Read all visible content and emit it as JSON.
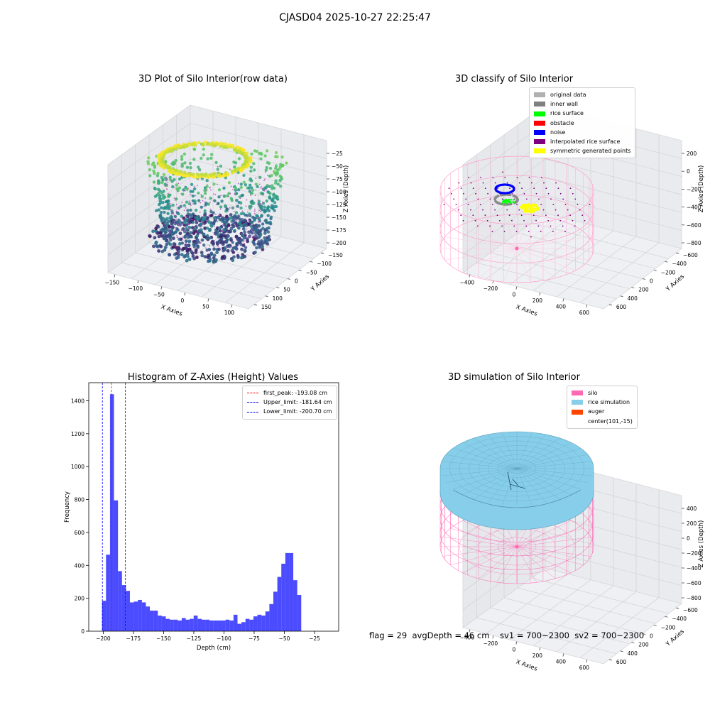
{
  "suptitle": "CJASD04 2025-10-27 22:25:47",
  "footer": "flag = 29  avgDepth = 46 cm    sv1 = 700~2300  sv2 = 700~2300",
  "chart_data": [
    {
      "type": "scatter",
      "title": "3D Plot of Silo Interior(row data)",
      "xlabel": "X Axies",
      "ylabel": "Y Axies",
      "zlabel": "Z Axies (Depth)",
      "x_ticks": [
        "−150",
        "−100",
        "−50",
        "0",
        "50",
        "100"
      ],
      "y_ticks": [
        "150",
        "100",
        "50",
        "0",
        "−50",
        "−100",
        "−150"
      ],
      "z_ticks": [
        "−25",
        "−50",
        "−75",
        "−100",
        "−125",
        "−150",
        "−175",
        "−200"
      ],
      "colormap": "viridis",
      "zlim": [
        -205,
        -10
      ]
    },
    {
      "type": "scatter",
      "title": "3D classify of Silo Interior",
      "xlabel": "X Axies",
      "ylabel": "Y Axies",
      "zlabel": "Z Axies (Depth)",
      "x_ticks": [
        "−400",
        "−200",
        "0",
        "200",
        "400",
        "600"
      ],
      "y_ticks": [
        "600",
        "400",
        "200",
        "0",
        "−200",
        "−400",
        "−600"
      ],
      "z_ticks": [
        "200",
        "0",
        "−200",
        "−400",
        "−600",
        "−800"
      ],
      "legend_position": "upper-right",
      "legend": [
        {
          "label": "original data",
          "color": "#b0b0b0"
        },
        {
          "label": "inner wall",
          "color": "#808080"
        },
        {
          "label": "rice surface",
          "color": "#00ff00"
        },
        {
          "label": "obstacle",
          "color": "#ff0000"
        },
        {
          "label": "noise",
          "color": "#0000ff"
        },
        {
          "label": "interpolated rice surface",
          "color": "#800080"
        },
        {
          "label": "symmetric generated points",
          "color": "#ffff00"
        }
      ]
    },
    {
      "type": "bar",
      "title": "Histogram of Z-Axies (Height) Values",
      "xlabel": "Depth (cm)",
      "ylabel": "Frequency",
      "xlim": [
        -212,
        -5
      ],
      "ylim": [
        0,
        1510
      ],
      "x_ticks": [
        -200,
        -175,
        -150,
        -125,
        -100,
        -75,
        -50,
        -25
      ],
      "y_ticks": [
        0,
        200,
        400,
        600,
        800,
        1000,
        1200,
        1400
      ],
      "bin_start": -201,
      "bin_width": 3.3,
      "values": [
        185,
        465,
        1440,
        795,
        365,
        280,
        245,
        175,
        180,
        190,
        175,
        150,
        125,
        125,
        95,
        90,
        75,
        70,
        70,
        65,
        80,
        70,
        75,
        95,
        75,
        70,
        70,
        65,
        65,
        65,
        65,
        70,
        65,
        100,
        45,
        55,
        75,
        70,
        90,
        100,
        95,
        120,
        165,
        240,
        330,
        410,
        475,
        475,
        310,
        220
      ],
      "bar_color": "#0000ff",
      "lines": [
        {
          "label": "first_peak: -193.08 cm",
          "x": -193.08,
          "color": "#ff0000"
        },
        {
          "label": "Upper_limit: -181.64 cm",
          "x": -181.64,
          "color": "#0000ff"
        },
        {
          "label": "Lower_limit: -200.70 cm",
          "x": -200.7,
          "color": "#0000ff"
        }
      ],
      "legend_position": "upper-right"
    },
    {
      "type": "surface",
      "title": "3D simulation of Silo Interior",
      "xlabel": "X Axies",
      "ylabel": "Y Axies",
      "zlabel": "Z Axies (Depth)",
      "x_ticks": [
        "−400",
        "−200",
        "0",
        "200",
        "400",
        "600"
      ],
      "y_ticks": [
        "600",
        "400",
        "200",
        "0",
        "−200",
        "−400",
        "−600"
      ],
      "z_ticks": [
        "400",
        "200",
        "0",
        "−200",
        "−400",
        "−600",
        "−800"
      ],
      "legend_position": "upper-right",
      "legend": [
        {
          "label": "silo",
          "color": "#ff69b4"
        },
        {
          "label": "rice simulation",
          "color": "#87ceeb"
        },
        {
          "label": "auger",
          "color": "#ff4500"
        },
        {
          "label": "center(101,-15)",
          "color": ""
        }
      ]
    }
  ]
}
